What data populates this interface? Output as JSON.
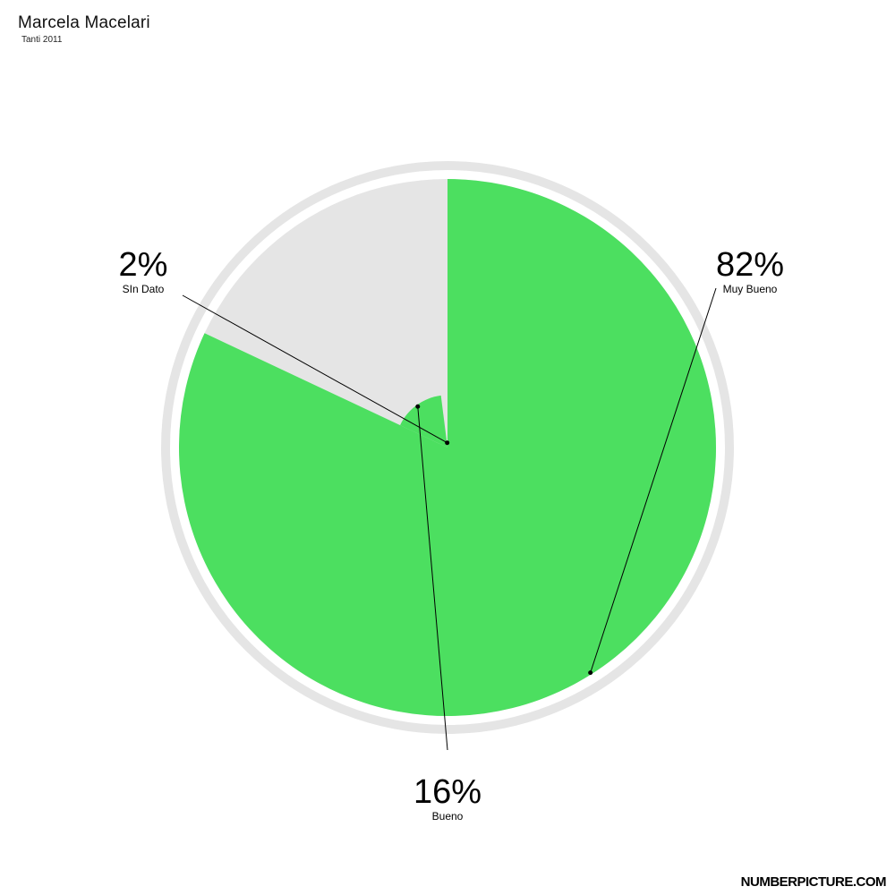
{
  "header": {
    "title": "Marcela Macelari",
    "subtitle": "Tanti 2011"
  },
  "chart_data": {
    "type": "pie",
    "variant": "polar-area",
    "start_angle_deg": 0,
    "direction": "clockwise",
    "colors": {
      "filled": "#4cdf60",
      "background": "#e5e5e5",
      "ring": "#e5e5e5",
      "leader": "#000000"
    },
    "slices": [
      {
        "label": "Muy Bueno",
        "value": 82,
        "display": "82%",
        "label_position": "right"
      },
      {
        "label": "Bueno",
        "value": 16,
        "display": "16%",
        "label_position": "bottom"
      },
      {
        "label": "SIn Dato",
        "value": 2,
        "display": "2%",
        "label_position": "left"
      }
    ]
  },
  "footer": {
    "brand": "NUMBERPICTURE.COM"
  }
}
